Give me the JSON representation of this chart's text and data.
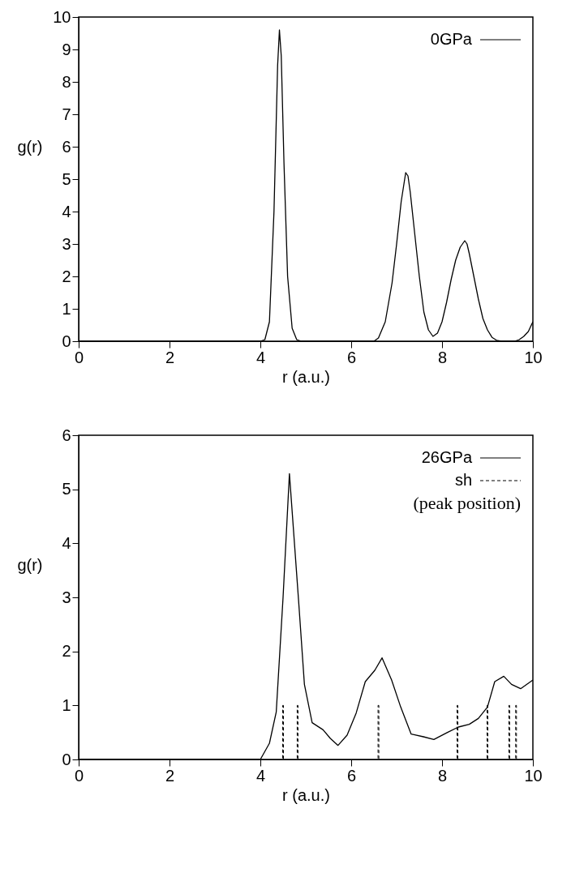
{
  "chart_data": [
    {
      "type": "line",
      "xlabel": "r (a.u.)",
      "ylabel": "g(r)",
      "xlim": [
        0,
        10
      ],
      "ylim": [
        0,
        10
      ],
      "xticks": [
        0,
        2,
        4,
        6,
        8,
        10
      ],
      "yticks": [
        0,
        1,
        2,
        3,
        4,
        5,
        6,
        7,
        8,
        9,
        10
      ],
      "legend": "top right",
      "series": [
        {
          "name": "0GPa",
          "color": "#000000",
          "x": [
            0,
            4.0,
            4.1,
            4.2,
            4.3,
            4.38,
            4.42,
            4.46,
            4.52,
            4.6,
            4.7,
            4.8,
            4.9,
            6.5,
            6.6,
            6.75,
            6.9,
            7.0,
            7.1,
            7.2,
            7.25,
            7.3,
            7.4,
            7.5,
            7.6,
            7.7,
            7.8,
            7.9,
            8.0,
            8.1,
            8.2,
            8.3,
            8.4,
            8.5,
            8.55,
            8.6,
            8.7,
            8.8,
            8.9,
            9.0,
            9.1,
            9.2,
            9.3,
            9.6,
            9.7,
            9.8,
            9.9,
            10
          ],
          "values": [
            0,
            0,
            0.05,
            0.6,
            4.0,
            8.5,
            9.6,
            8.8,
            5.5,
            2.0,
            0.4,
            0.05,
            0,
            0,
            0.1,
            0.6,
            1.8,
            3.0,
            4.3,
            5.2,
            5.1,
            4.6,
            3.3,
            2.0,
            0.9,
            0.35,
            0.15,
            0.25,
            0.6,
            1.2,
            1.9,
            2.5,
            2.9,
            3.1,
            3.0,
            2.7,
            2.0,
            1.3,
            0.7,
            0.35,
            0.12,
            0.03,
            0,
            0,
            0.05,
            0.15,
            0.3,
            0.6
          ]
        }
      ]
    },
    {
      "type": "line",
      "xlabel": "r (a.u.)",
      "ylabel": "g(r)",
      "xlim": [
        0,
        10
      ],
      "ylim": [
        0,
        6
      ],
      "xticks": [
        0,
        2,
        4,
        6,
        8,
        10
      ],
      "yticks": [
        0,
        1,
        2,
        3,
        4,
        5,
        6
      ],
      "legend": "top right",
      "annotations": [
        "(peak position)"
      ],
      "series": [
        {
          "name": "26GPa",
          "color": "#000000",
          "x": [
            0,
            4.0,
            4.2,
            4.35,
            4.5,
            4.64,
            4.84,
            4.97,
            5.14,
            5.38,
            5.54,
            5.71,
            5.91,
            6.11,
            6.31,
            6.52,
            6.68,
            6.89,
            7.09,
            7.32,
            7.59,
            7.82,
            8.12,
            8.36,
            8.6,
            8.8,
            9.0,
            9.16,
            9.36,
            9.53,
            9.73,
            10
          ],
          "values": [
            0,
            0,
            0.3,
            0.88,
            3.0,
            5.29,
            2.96,
            1.39,
            0.68,
            0.55,
            0.39,
            0.26,
            0.45,
            0.86,
            1.44,
            1.65,
            1.88,
            1.47,
            0.97,
            0.47,
            0.42,
            0.37,
            0.5,
            0.6,
            0.65,
            0.76,
            0.97,
            1.44,
            1.54,
            1.39,
            1.31,
            1.47
          ]
        },
        {
          "name": "sh",
          "type": "bar",
          "line_style": "dashed",
          "color": "#000000",
          "x": [
            4.5,
            4.82,
            6.6,
            8.34,
            9.0,
            9.48,
            9.63
          ],
          "values": [
            1,
            1,
            1,
            1,
            1,
            1,
            1
          ]
        }
      ]
    }
  ]
}
